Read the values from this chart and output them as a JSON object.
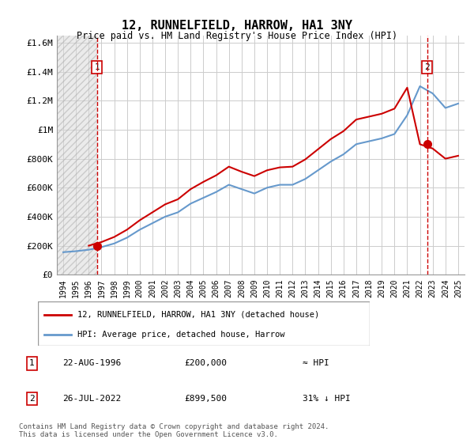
{
  "title": "12, RUNNELFIELD, HARROW, HA1 3NY",
  "subtitle": "Price paid vs. HM Land Registry's House Price Index (HPI)",
  "ylabel_ticks": [
    "£0",
    "£200K",
    "£400K",
    "£600K",
    "£800K",
    "£1M",
    "£1.2M",
    "£1.4M",
    "£1.6M"
  ],
  "ytick_values": [
    0,
    200000,
    400000,
    600000,
    800000,
    1000000,
    1200000,
    1400000,
    1600000
  ],
  "ylim": [
    0,
    1650000
  ],
  "xlim_start": 1993.5,
  "xlim_end": 2025.5,
  "hpi_line_color": "#6699cc",
  "property_line_color": "#cc0000",
  "sale1_date": "22-AUG-1996",
  "sale1_year": 1996.64,
  "sale1_price": 200000,
  "sale2_date": "26-JUL-2022",
  "sale2_year": 2022.57,
  "sale2_price": 899500,
  "sale2_hpi_relation": "31% ↓ HPI",
  "sale1_hpi_relation": "≈ HPI",
  "legend_label1": "12, RUNNELFIELD, HARROW, HA1 3NY (detached house)",
  "legend_label2": "HPI: Average price, detached house, Harrow",
  "footnote": "Contains HM Land Registry data © Crown copyright and database right 2024.\nThis data is licensed under the Open Government Licence v3.0.",
  "background_hatch_color": "#e8e8e8",
  "grid_color": "#cccccc",
  "hpi_years": [
    1994,
    1995,
    1996,
    1997,
    1998,
    1999,
    2000,
    2001,
    2002,
    2003,
    2004,
    2005,
    2006,
    2007,
    2008,
    2009,
    2010,
    2011,
    2012,
    2013,
    2014,
    2015,
    2016,
    2017,
    2018,
    2019,
    2020,
    2021,
    2022,
    2023,
    2024,
    2025
  ],
  "hpi_values": [
    155000,
    162000,
    172000,
    190000,
    215000,
    255000,
    310000,
    355000,
    400000,
    430000,
    490000,
    530000,
    570000,
    620000,
    590000,
    560000,
    600000,
    620000,
    620000,
    660000,
    720000,
    780000,
    830000,
    900000,
    920000,
    940000,
    970000,
    1100000,
    1300000,
    1250000,
    1150000,
    1180000
  ],
  "property_hpi_years": [
    1994,
    1995,
    1996,
    1997,
    1998,
    1999,
    2000,
    2001,
    2002,
    2003,
    2004,
    2005,
    2006,
    2007,
    2008,
    2009,
    2010,
    2011,
    2012,
    2013,
    2014,
    2015,
    2016,
    2017,
    2018,
    2019,
    2020,
    2021,
    2022,
    2023,
    2024,
    2025
  ],
  "property_hpi_values": [
    155000,
    162000,
    200000,
    225000,
    260000,
    310000,
    375000,
    430000,
    485000,
    520000,
    590000,
    640000,
    685000,
    745000,
    710000,
    680000,
    720000,
    740000,
    745000,
    795000,
    865000,
    935000,
    990000,
    1070000,
    1090000,
    1110000,
    1145000,
    1290000,
    899500,
    870000,
    800000,
    820000
  ],
  "xtick_years": [
    1994,
    1995,
    1996,
    1997,
    1998,
    1999,
    2000,
    2001,
    2002,
    2003,
    2004,
    2005,
    2006,
    2007,
    2008,
    2009,
    2010,
    2011,
    2012,
    2013,
    2014,
    2015,
    2016,
    2017,
    2018,
    2019,
    2020,
    2021,
    2022,
    2023,
    2024,
    2025
  ]
}
